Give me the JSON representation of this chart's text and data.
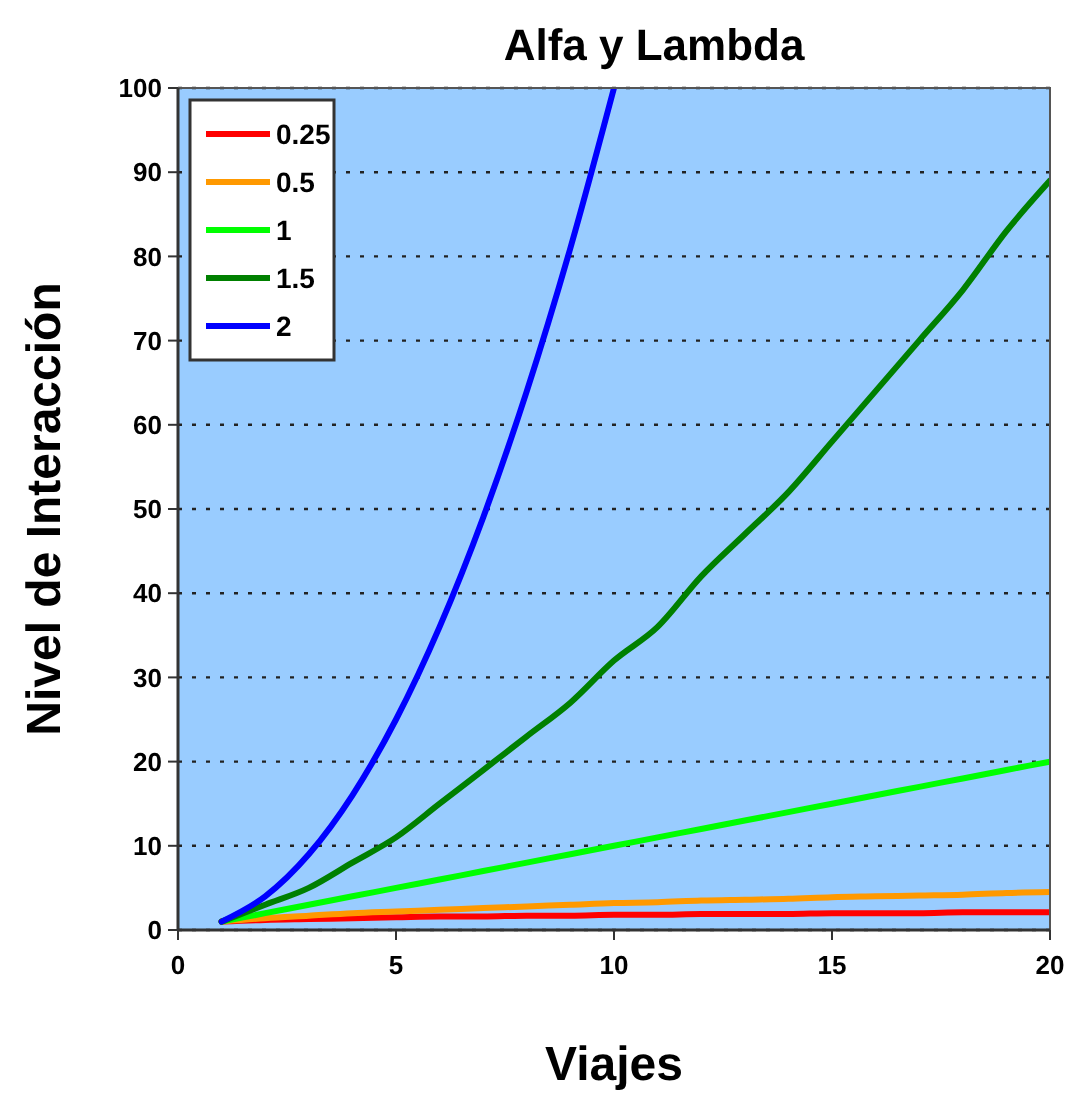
{
  "chart_data": {
    "type": "line",
    "title": "Alfa y Lambda",
    "xlabel": "Viajes",
    "ylabel": "Nivel de Interacción",
    "xlim": [
      0,
      20
    ],
    "xticks": [
      0,
      5,
      10,
      15,
      20
    ],
    "ylim": [
      0,
      100
    ],
    "yticks": [
      0,
      10,
      20,
      30,
      40,
      50,
      60,
      70,
      80,
      90,
      100
    ],
    "grid": "y",
    "legend": "top left",
    "marker": "none",
    "line_style": "solid",
    "series": [
      {
        "name": "0.25",
        "color": "#ff0000",
        "x": [
          1,
          2,
          3,
          4,
          5,
          6,
          7,
          8,
          9,
          10,
          11,
          12,
          13,
          14,
          15,
          16,
          17,
          18,
          19,
          20
        ],
        "values": [
          1,
          1.2,
          1.3,
          1.4,
          1.5,
          1.6,
          1.6,
          1.7,
          1.7,
          1.8,
          1.8,
          1.9,
          1.9,
          1.9,
          2,
          2,
          2,
          2.1,
          2.1,
          2.1
        ]
      },
      {
        "name": "0.5",
        "color": "#ff9900",
        "x": [
          1,
          2,
          3,
          4,
          5,
          6,
          7,
          8,
          9,
          10,
          11,
          12,
          13,
          14,
          15,
          16,
          17,
          18,
          19,
          20
        ],
        "values": [
          1,
          1.4,
          1.7,
          2,
          2.2,
          2.4,
          2.6,
          2.8,
          3,
          3.2,
          3.3,
          3.5,
          3.6,
          3.7,
          3.9,
          4,
          4.1,
          4.2,
          4.4,
          4.5
        ]
      },
      {
        "name": "1",
        "color": "#00ff00",
        "x": [
          1,
          2,
          3,
          4,
          5,
          6,
          7,
          8,
          9,
          10,
          11,
          12,
          13,
          14,
          15,
          16,
          17,
          18,
          19,
          20
        ],
        "values": [
          1,
          2,
          3,
          4,
          5,
          6,
          7,
          8,
          9,
          10,
          11,
          12,
          13,
          14,
          15,
          16,
          17,
          18,
          19,
          20
        ]
      },
      {
        "name": "1.5",
        "color": "#008000",
        "x": [
          1,
          2,
          3,
          4,
          5,
          6,
          7,
          8,
          9,
          10,
          11,
          12,
          13,
          14,
          15,
          16,
          17,
          18,
          19,
          20
        ],
        "values": [
          1,
          3,
          5,
          8,
          11,
          15,
          19,
          23,
          27,
          32,
          36,
          42,
          47,
          52,
          58,
          64,
          70,
          76,
          83,
          89
        ]
      },
      {
        "name": "2",
        "color": "#0000ff",
        "x": [
          1,
          2,
          3,
          4,
          5,
          6,
          7,
          8,
          9,
          10
        ],
        "values": [
          1,
          4,
          9,
          16,
          25,
          36,
          49,
          64,
          81,
          100
        ]
      }
    ]
  }
}
